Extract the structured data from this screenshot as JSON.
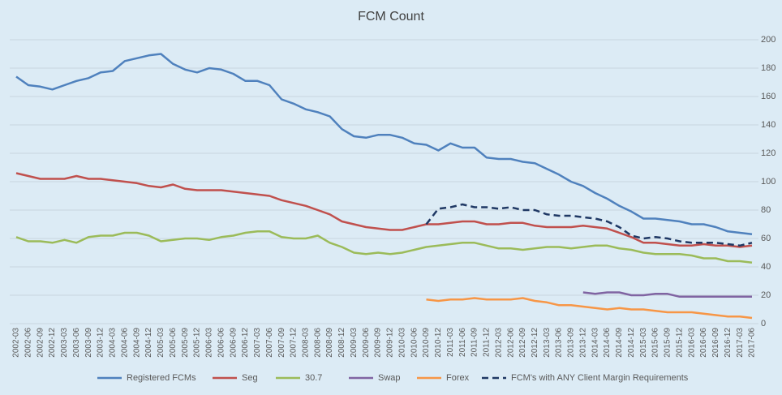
{
  "chart_data": {
    "type": "line",
    "title": "FCM Count",
    "categories": [
      "2002-03",
      "2002-06",
      "2002-09",
      "2002-12",
      "2003-03",
      "2003-06",
      "2003-09",
      "2003-12",
      "2004-03",
      "2004-06",
      "2004-09",
      "2004-12",
      "2005-03",
      "2005-06",
      "2005-09",
      "2005-12",
      "2006-03",
      "2006-06",
      "2006-09",
      "2006-12",
      "2007-03",
      "2007-06",
      "2007-09",
      "2007-12",
      "2008-03",
      "2008-06",
      "2008-09",
      "2008-12",
      "2009-03",
      "2009-06",
      "2009-09",
      "2009-12",
      "2010-03",
      "2010-06",
      "2010-09",
      "2010-12",
      "2011-03",
      "2011-06",
      "2011-09",
      "2011-12",
      "2012-03",
      "2012-06",
      "2012-09",
      "2012-12",
      "2013-03",
      "2013-06",
      "2013-09",
      "2013-12",
      "2014-03",
      "2014-06",
      "2014-09",
      "2014-12",
      "2015-03",
      "2015-06",
      "2015-09",
      "2015-12",
      "2016-03",
      "2016-06",
      "2016-09",
      "2016-12",
      "2017-03",
      "2017-06"
    ],
    "series": [
      {
        "name": "Registered FCMs",
        "color": "#4f81bd",
        "values": [
          174,
          168,
          167,
          165,
          168,
          171,
          173,
          177,
          178,
          185,
          187,
          189,
          190,
          183,
          179,
          177,
          180,
          179,
          176,
          171,
          171,
          168,
          158,
          155,
          151,
          149,
          146,
          137,
          132,
          131,
          133,
          133,
          131,
          127,
          126,
          122,
          127,
          124,
          124,
          117,
          116,
          116,
          114,
          113,
          109,
          105,
          100,
          97,
          92,
          88,
          83,
          79,
          74,
          74,
          73,
          72,
          70,
          70,
          68,
          65,
          64,
          63
        ]
      },
      {
        "name": "Seg",
        "color": "#c0504d",
        "values": [
          106,
          104,
          102,
          102,
          102,
          104,
          102,
          102,
          101,
          100,
          99,
          97,
          96,
          98,
          95,
          94,
          94,
          94,
          93,
          92,
          91,
          90,
          87,
          85,
          83,
          80,
          77,
          72,
          70,
          68,
          67,
          66,
          66,
          68,
          70,
          70,
          71,
          72,
          72,
          70,
          70,
          71,
          71,
          69,
          68,
          68,
          68,
          69,
          68,
          67,
          64,
          61,
          57,
          57,
          56,
          55,
          55,
          56,
          55,
          55,
          54,
          55
        ]
      },
      {
        "name": "30.7",
        "color": "#9bbb59",
        "values": [
          61,
          58,
          58,
          57,
          59,
          57,
          61,
          62,
          62,
          64,
          64,
          62,
          58,
          59,
          60,
          60,
          59,
          61,
          62,
          64,
          65,
          65,
          61,
          60,
          60,
          62,
          57,
          54,
          50,
          49,
          50,
          49,
          50,
          52,
          54,
          55,
          56,
          57,
          57,
          55,
          53,
          53,
          52,
          53,
          54,
          54,
          53,
          54,
          55,
          55,
          53,
          52,
          50,
          49,
          49,
          49,
          48,
          46,
          46,
          44,
          44,
          43
        ]
      },
      {
        "name": "Swap",
        "color": "#8064a2",
        "values": [
          null,
          null,
          null,
          null,
          null,
          null,
          null,
          null,
          null,
          null,
          null,
          null,
          null,
          null,
          null,
          null,
          null,
          null,
          null,
          null,
          null,
          null,
          null,
          null,
          null,
          null,
          null,
          null,
          null,
          null,
          null,
          null,
          null,
          null,
          null,
          null,
          null,
          null,
          null,
          null,
          null,
          null,
          null,
          null,
          null,
          null,
          null,
          22,
          21,
          22,
          22,
          20,
          20,
          21,
          21,
          19,
          19,
          19,
          19,
          19,
          19,
          19
        ]
      },
      {
        "name": "Forex",
        "color": "#f79646",
        "values": [
          null,
          null,
          null,
          null,
          null,
          null,
          null,
          null,
          null,
          null,
          null,
          null,
          null,
          null,
          null,
          null,
          null,
          null,
          null,
          null,
          null,
          null,
          null,
          null,
          null,
          null,
          null,
          null,
          null,
          null,
          null,
          null,
          null,
          null,
          17,
          16,
          17,
          17,
          18,
          17,
          17,
          17,
          18,
          16,
          15,
          13,
          13,
          12,
          11,
          10,
          11,
          10,
          10,
          9,
          8,
          8,
          8,
          7,
          6,
          5,
          5,
          4
        ]
      },
      {
        "name": "FCM's with ANY Client Margin Requirements",
        "color": "#1f3864",
        "dashed": true,
        "values": [
          null,
          null,
          null,
          null,
          null,
          null,
          null,
          null,
          null,
          null,
          null,
          null,
          null,
          null,
          null,
          null,
          null,
          null,
          null,
          null,
          null,
          null,
          null,
          null,
          null,
          null,
          null,
          null,
          null,
          null,
          null,
          null,
          null,
          null,
          70,
          81,
          82,
          84,
          82,
          82,
          81,
          82,
          80,
          80,
          77,
          76,
          76,
          75,
          74,
          72,
          68,
          62,
          60,
          61,
          60,
          58,
          57,
          57,
          57,
          56,
          55,
          57
        ]
      }
    ],
    "ylim": [
      0,
      200
    ],
    "yticks": [
      0,
      20,
      40,
      60,
      80,
      100,
      120,
      140,
      160,
      180,
      200
    ],
    "grid": true,
    "legend": "bottom"
  }
}
